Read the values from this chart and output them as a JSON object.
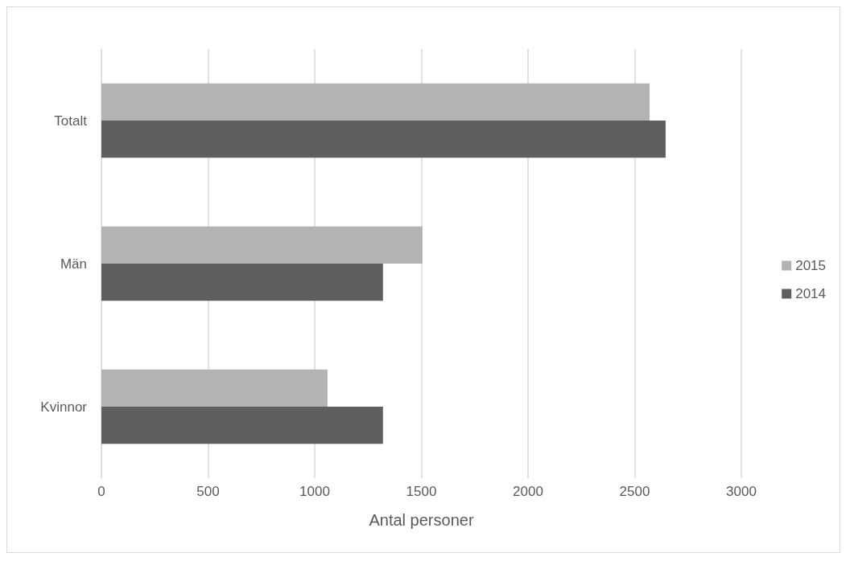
{
  "chart_data": {
    "type": "bar",
    "orientation": "horizontal",
    "xlabel": "Antal personer",
    "categories": [
      "Totalt",
      "Män",
      "Kvinnor"
    ],
    "series": [
      {
        "name": "2015",
        "color": "#b3b3b3",
        "values": [
          2570,
          1505,
          1060
        ]
      },
      {
        "name": "2014",
        "color": "#5f5f5f",
        "values": [
          2645,
          1320,
          1320
        ]
      }
    ],
    "xlim": [
      0,
      3000
    ],
    "xticks": [
      0,
      500,
      1000,
      1500,
      2000,
      2500,
      3000
    ],
    "grid": "x",
    "legend": "right"
  }
}
